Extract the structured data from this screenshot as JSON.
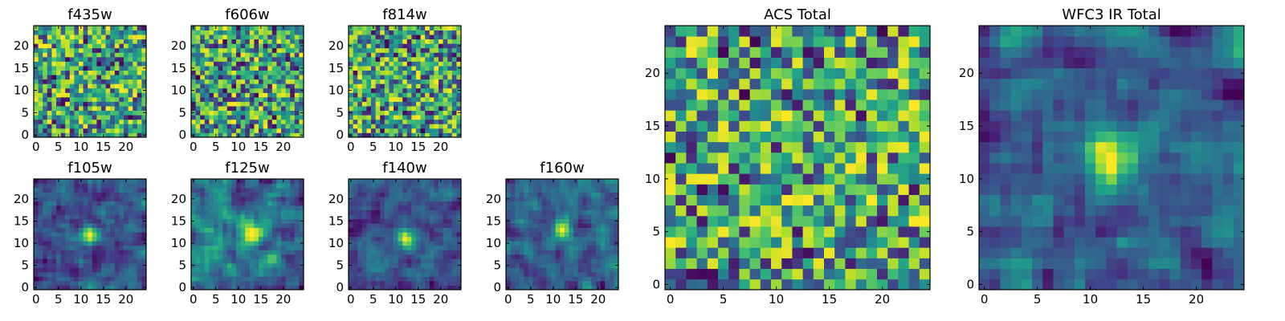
{
  "chart_data": [
    {
      "type": "heatmap",
      "title": "f435w",
      "colormap": "viridis",
      "grid_size": 25,
      "xlim": [
        0,
        24
      ],
      "ylim": [
        0,
        24
      ],
      "x_ticks": [
        0,
        5,
        10,
        15,
        20
      ],
      "y_ticks": [
        0,
        5,
        10,
        15,
        20
      ],
      "pattern": "noise",
      "source_peak": [
        12,
        12
      ],
      "seed": 11
    },
    {
      "type": "heatmap",
      "title": "f606w",
      "colormap": "viridis",
      "grid_size": 25,
      "xlim": [
        0,
        24
      ],
      "ylim": [
        0,
        24
      ],
      "x_ticks": [
        0,
        5,
        10,
        15,
        20
      ],
      "y_ticks": [
        0,
        5,
        10,
        15,
        20
      ],
      "pattern": "noise",
      "source_peak": [
        12,
        12
      ],
      "seed": 23
    },
    {
      "type": "heatmap",
      "title": "f814w",
      "colormap": "viridis",
      "grid_size": 25,
      "xlim": [
        0,
        24
      ],
      "ylim": [
        0,
        24
      ],
      "x_ticks": [
        0,
        5,
        10,
        15,
        20
      ],
      "y_ticks": [
        0,
        5,
        10,
        15,
        20
      ],
      "pattern": "noise",
      "source_peak": [
        12,
        12
      ],
      "seed": 37
    },
    {
      "type": "heatmap",
      "title": "f105w",
      "colormap": "viridis",
      "grid_size": 25,
      "xlim": [
        0,
        24
      ],
      "ylim": [
        0,
        24
      ],
      "x_ticks": [
        0,
        5,
        10,
        15,
        20
      ],
      "y_ticks": [
        0,
        5,
        10,
        15,
        20
      ],
      "pattern": "smooth-source",
      "source_peak": [
        12,
        12
      ],
      "seed": 41
    },
    {
      "type": "heatmap",
      "title": "f125w",
      "colormap": "viridis",
      "grid_size": 25,
      "xlim": [
        0,
        24
      ],
      "ylim": [
        0,
        24
      ],
      "x_ticks": [
        0,
        5,
        10,
        15,
        20
      ],
      "y_ticks": [
        0,
        5,
        10,
        15,
        20
      ],
      "pattern": "smooth-source",
      "source_peak": [
        13,
        12
      ],
      "seed": 53
    },
    {
      "type": "heatmap",
      "title": "f140w",
      "colormap": "viridis",
      "grid_size": 25,
      "xlim": [
        0,
        24
      ],
      "ylim": [
        0,
        24
      ],
      "x_ticks": [
        0,
        5,
        10,
        15,
        20
      ],
      "y_ticks": [
        0,
        5,
        10,
        15,
        20
      ],
      "pattern": "smooth-source",
      "source_peak": [
        12,
        11
      ],
      "seed": 67
    },
    {
      "type": "heatmap",
      "title": "f160w",
      "colormap": "viridis",
      "grid_size": 25,
      "xlim": [
        0,
        24
      ],
      "ylim": [
        0,
        24
      ],
      "x_ticks": [
        0,
        5,
        10,
        15,
        20
      ],
      "y_ticks": [
        0,
        5,
        10,
        15,
        20
      ],
      "pattern": "smooth-source",
      "source_peak": [
        12,
        13
      ],
      "seed": 79
    },
    {
      "type": "heatmap",
      "title": "ACS Total",
      "colormap": "viridis",
      "grid_size": 25,
      "xlim": [
        0,
        24
      ],
      "ylim": [
        0,
        24
      ],
      "x_ticks": [
        0,
        5,
        10,
        15,
        20
      ],
      "y_ticks": [
        0,
        5,
        10,
        15,
        20
      ],
      "pattern": "noise",
      "source_peak": [
        12,
        12
      ],
      "seed": 97
    },
    {
      "type": "heatmap",
      "title": "WFC3 IR Total",
      "colormap": "viridis",
      "grid_size": 25,
      "xlim": [
        0,
        24
      ],
      "ylim": [
        0,
        24
      ],
      "x_ticks": [
        0,
        5,
        10,
        15,
        20
      ],
      "y_ticks": [
        0,
        5,
        10,
        15,
        20
      ],
      "pattern": "smooth-source",
      "source_peak": [
        12,
        12
      ],
      "seed": 113
    }
  ]
}
